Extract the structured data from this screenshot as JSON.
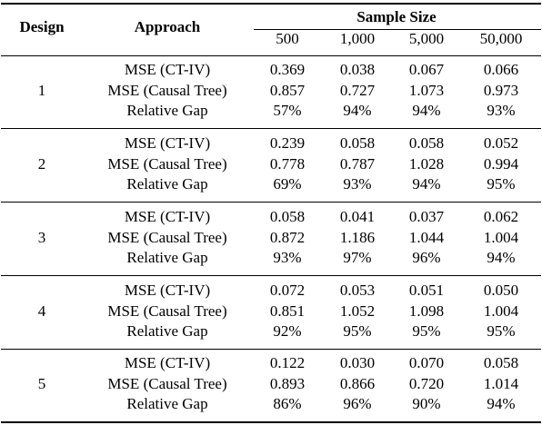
{
  "headers": {
    "design": "Design",
    "approach": "Approach",
    "sample_size": "Sample Size",
    "sizes": [
      "500",
      "1,000",
      "5,000",
      "50,000"
    ]
  },
  "groups": [
    {
      "design": "1",
      "rows": [
        {
          "label": "MSE (CT-IV)",
          "values": [
            "0.369",
            "0.038",
            "0.067",
            "0.066"
          ]
        },
        {
          "label": "MSE (Causal Tree)",
          "values": [
            "0.857",
            "0.727",
            "1.073",
            "0.973"
          ]
        },
        {
          "label": "Relative Gap",
          "values": [
            "57%",
            "94%",
            "94%",
            "93%"
          ]
        }
      ]
    },
    {
      "design": "2",
      "rows": [
        {
          "label": "MSE (CT-IV)",
          "values": [
            "0.239",
            "0.058",
            "0.058",
            "0.052"
          ]
        },
        {
          "label": "MSE (Causal Tree)",
          "values": [
            "0.778",
            "0.787",
            "1.028",
            "0.994"
          ]
        },
        {
          "label": "Relative Gap",
          "values": [
            "69%",
            "93%",
            "94%",
            "95%"
          ]
        }
      ]
    },
    {
      "design": "3",
      "rows": [
        {
          "label": "MSE (CT-IV)",
          "values": [
            "0.058",
            "0.041",
            "0.037",
            "0.062"
          ]
        },
        {
          "label": "MSE (Causal Tree)",
          "values": [
            "0.872",
            "1.186",
            "1.044",
            "1.004"
          ]
        },
        {
          "label": "Relative Gap",
          "values": [
            "93%",
            "97%",
            "96%",
            "94%"
          ]
        }
      ]
    },
    {
      "design": "4",
      "rows": [
        {
          "label": "MSE (CT-IV)",
          "values": [
            "0.072",
            "0.053",
            "0.051",
            "0.050"
          ]
        },
        {
          "label": "MSE (Causal Tree)",
          "values": [
            "0.851",
            "1.052",
            "1.098",
            "1.004"
          ]
        },
        {
          "label": "Relative Gap",
          "values": [
            "92%",
            "95%",
            "95%",
            "95%"
          ]
        }
      ]
    },
    {
      "design": "5",
      "rows": [
        {
          "label": "MSE (CT-IV)",
          "values": [
            "0.122",
            "0.030",
            "0.070",
            "0.058"
          ]
        },
        {
          "label": "MSE (Causal Tree)",
          "values": [
            "0.893",
            "0.866",
            "0.720",
            "1.014"
          ]
        },
        {
          "label": "Relative Gap",
          "values": [
            "86%",
            "96%",
            "90%",
            "94%"
          ]
        }
      ]
    }
  ]
}
